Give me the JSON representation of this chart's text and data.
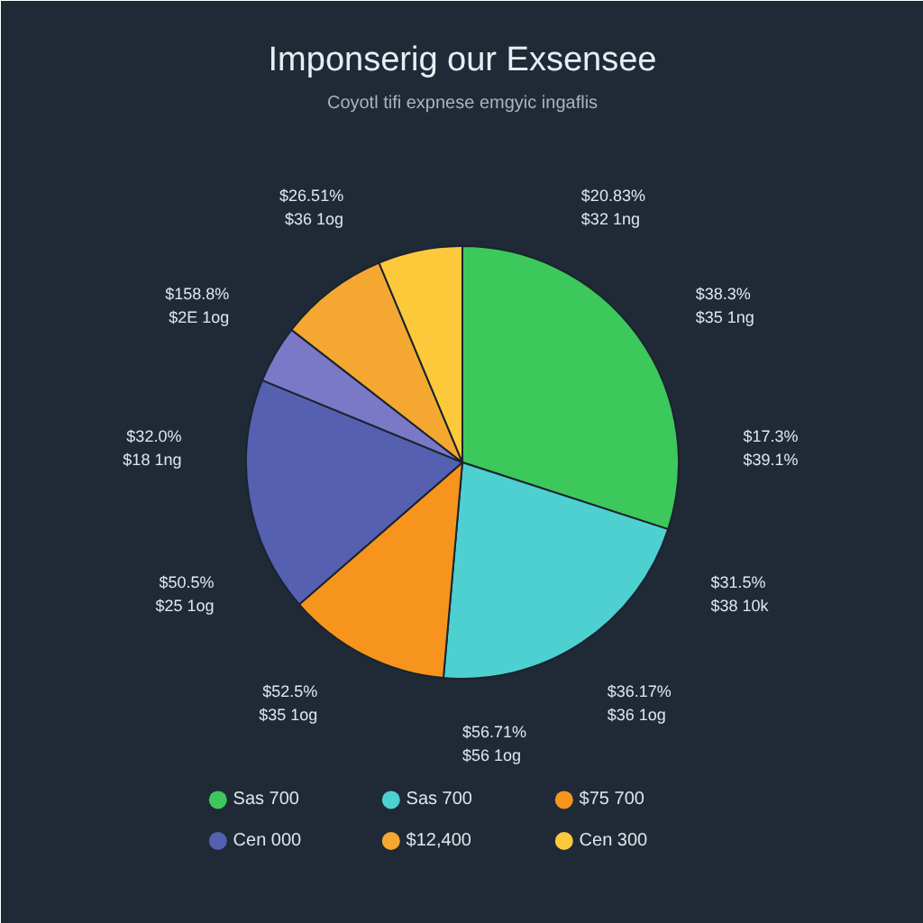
{
  "chart_data": {
    "type": "pie",
    "title": "Imponserig our Exsensee",
    "subtitle": "Coyotl tifi expnese emgyic ingaflis",
    "categories": [
      "Sas 700",
      "Sas 700",
      "$75 700",
      "Cen 000",
      null,
      "$12,400",
      "Cen 300"
    ],
    "values": [
      30.0,
      21.4,
      12.2,
      17.6,
      4.3,
      8.2,
      6.3
    ],
    "colors": [
      "#3cc85a",
      "#4fd0d0",
      "#f7941d",
      "#5560b0",
      "#7b78c8",
      "#f5a831",
      "#fcc93a"
    ],
    "legend": "bottom",
    "annotations": [
      "$20.83%\n$32 1ng",
      "$38.3%\n$35 1ng",
      "$17.3%\n$39.1%",
      "$31.5%\n$38 10k",
      "$36.17%\n$36 1og",
      "$56.71%\n$56 1og",
      "$52.5%\n$35 1og",
      "$50.5%\n$25 1og",
      "$32.0%\n$18 1ng",
      "$158.8%\n$2E 1og",
      "$26.51%\n$36 1og"
    ]
  }
}
